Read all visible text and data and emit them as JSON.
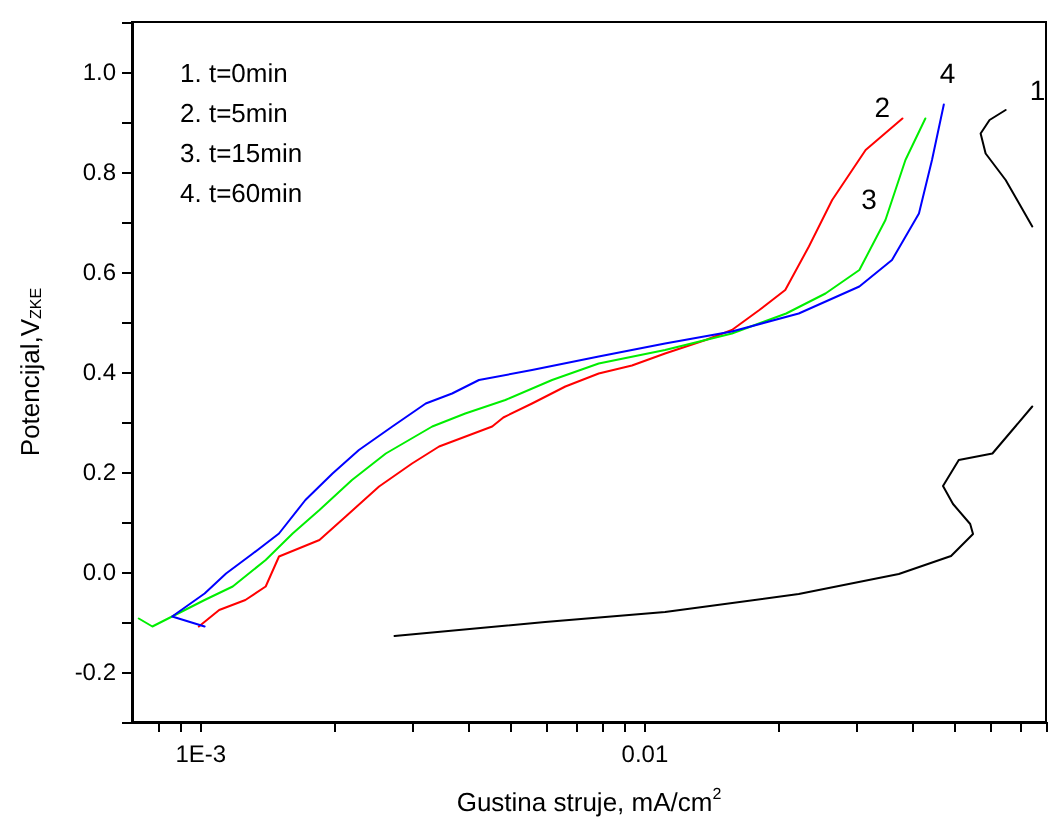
{
  "chart_data": {
    "type": "line",
    "xlabel": "Gustina struje, mA/cm$^{2}$",
    "ylabel": "Potencijal,V$_{ZKE}$",
    "log": "x",
    "xlim": [
      0.0007,
      0.08
    ],
    "ylim": [
      -0.3,
      1.1
    ],
    "xticks": [
      {
        "value": 0.0008,
        "label": null
      },
      {
        "value": 0.0009,
        "label": null
      },
      {
        "value": 0.001,
        "label": "1E-3"
      },
      {
        "value": 0.002,
        "label": null
      },
      {
        "value": 0.003,
        "label": null
      },
      {
        "value": 0.004,
        "label": null
      },
      {
        "value": 0.005,
        "label": null
      },
      {
        "value": 0.006,
        "label": null
      },
      {
        "value": 0.007,
        "label": null
      },
      {
        "value": 0.008,
        "label": null
      },
      {
        "value": 0.009,
        "label": null
      },
      {
        "value": 0.01,
        "label": "0.01"
      },
      {
        "value": 0.02,
        "label": null
      },
      {
        "value": 0.03,
        "label": null
      },
      {
        "value": 0.04,
        "label": null
      },
      {
        "value": 0.05,
        "label": null
      },
      {
        "value": 0.06,
        "label": null
      },
      {
        "value": 0.07,
        "label": null
      },
      {
        "value": 0.08,
        "label": null
      }
    ],
    "yticks": [
      {
        "value": -0.3,
        "label": null
      },
      -0.2,
      {
        "value": -0.1,
        "label": null
      },
      {
        "value": 0,
        "label": "0.0"
      },
      {
        "value": 0.1,
        "label": null
      },
      0.2,
      {
        "value": 0.3,
        "label": null
      },
      0.4,
      {
        "value": 0.5,
        "label": null
      },
      0.6,
      {
        "value": 0.7,
        "label": null
      },
      0.8,
      {
        "value": 0.9,
        "label": null
      },
      {
        "value": 1,
        "label": "1.0"
      },
      {
        "value": 1.1,
        "label": null
      }
    ],
    "grid": false,
    "legend": false,
    "marker": "none",
    "line_style": "solid",
    "annotations": [
      "1. t=0min",
      "2. t=5min",
      "3. t=15min",
      "4. t=60min"
    ],
    "series": [
      {
        "name": "1",
        "color": "#000000",
        "x": [
          0.00273,
          0.00596,
          0.0111,
          0.0222,
          0.0373,
          0.0489,
          0.0548,
          0.054,
          0.0494,
          0.0469,
          0.0509,
          0.0606,
          0.0745,
          null,
          0.0745,
          0.0649,
          0.0585,
          0.057,
          0.0597,
          0.0649
        ],
        "values": [
          -0.128,
          -0.1,
          -0.08,
          -0.044,
          -0.004,
          0.032,
          0.076,
          0.096,
          0.136,
          0.172,
          0.224,
          0.237,
          0.331,
          null,
          0.691,
          0.784,
          0.837,
          0.877,
          0.904,
          0.924
        ]
      },
      {
        "name": "2",
        "color": "#ff0000",
        "x": [
          0.00099,
          0.0011,
          0.00126,
          0.0014,
          0.0015,
          0.00185,
          0.00212,
          0.00252,
          0.00299,
          0.00344,
          0.00453,
          0.0048,
          0.00557,
          0.00662,
          0.00787,
          0.00935,
          0.0111,
          0.0137,
          0.0157,
          0.0181,
          0.0207,
          0.0234,
          0.0264,
          0.0314,
          0.038
        ],
        "values": [
          -0.109,
          -0.076,
          -0.056,
          -0.029,
          0.031,
          0.064,
          0.111,
          0.171,
          0.217,
          0.251,
          0.291,
          0.309,
          0.337,
          0.371,
          0.397,
          0.413,
          0.437,
          0.464,
          0.484,
          0.524,
          0.564,
          0.651,
          0.744,
          0.844,
          0.907
        ]
      },
      {
        "name": "3",
        "color": "#00ee00",
        "x": [
          0.000725,
          0.000778,
          0.00102,
          0.00118,
          0.0014,
          0.00161,
          0.00185,
          0.00219,
          0.00261,
          0.00332,
          0.00394,
          0.00485,
          0.00618,
          0.00787,
          0.0111,
          0.0157,
          0.0208,
          0.0255,
          0.0304,
          0.0348,
          0.0386,
          0.0428
        ],
        "values": [
          -0.093,
          -0.109,
          -0.056,
          -0.029,
          0.024,
          0.077,
          0.124,
          0.184,
          0.237,
          0.291,
          0.317,
          0.344,
          0.384,
          0.417,
          0.444,
          0.477,
          0.517,
          0.557,
          0.604,
          0.704,
          0.824,
          0.907
        ]
      },
      {
        "name": "4",
        "color": "#0000ff",
        "x": [
          0.00102,
          0.000862,
          0.00102,
          0.00114,
          0.00131,
          0.0015,
          0.00172,
          0.00198,
          0.00227,
          0.0027,
          0.00321,
          0.00368,
          0.00423,
          0.00557,
          0.00787,
          0.0111,
          0.0157,
          0.0222,
          0.0304,
          0.036,
          0.0414,
          0.0443,
          0.0471
        ],
        "values": [
          -0.109,
          -0.089,
          -0.043,
          -0.003,
          0.037,
          0.077,
          0.144,
          0.197,
          0.244,
          0.291,
          0.337,
          0.357,
          0.384,
          0.404,
          0.431,
          0.457,
          0.481,
          0.517,
          0.571,
          0.624,
          0.717,
          0.824,
          0.935
        ]
      }
    ]
  }
}
